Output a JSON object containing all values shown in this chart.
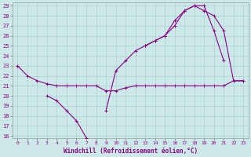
{
  "xlabel": "Windchill (Refroidissement éolien,°C)",
  "x_hours": [
    0,
    1,
    2,
    3,
    4,
    5,
    6,
    7,
    8,
    9,
    10,
    11,
    12,
    13,
    14,
    15,
    16,
    17,
    18,
    19,
    20,
    21,
    22,
    23
  ],
  "line_mid": [
    23,
    22,
    21.5,
    21.2,
    21.0,
    21.0,
    21.0,
    21.0,
    21.0,
    20.5,
    20.5,
    20.8,
    21.0,
    21.0,
    21.0,
    21.0,
    21.0,
    21.0,
    21.0,
    21.0,
    21.0,
    21.0,
    21.5,
    21.5
  ],
  "line_dip": [
    null,
    null,
    null,
    20.0,
    19.5,
    18.5,
    17.5,
    15.8,
    null,
    18.5,
    22.5,
    23.5,
    24.5,
    25.0,
    25.5,
    26.0,
    27.5,
    28.5,
    29.0,
    29.0,
    26.5,
    23.5,
    null,
    null
  ],
  "line_top": [
    null,
    null,
    null,
    null,
    null,
    null,
    null,
    null,
    null,
    null,
    null,
    null,
    null,
    null,
    null,
    null,
    null,
    null,
    null,
    null,
    null,
    null,
    null,
    null
  ],
  "line_upper": [
    23,
    null,
    null,
    null,
    null,
    null,
    null,
    null,
    null,
    null,
    null,
    null,
    null,
    25.0,
    25.5,
    26.0,
    27.0,
    28.5,
    29.0,
    28.5,
    28.0,
    26.5,
    21.5,
    21.5
  ],
  "ylim": [
    16,
    29
  ],
  "xlim": [
    0,
    23
  ],
  "yticks": [
    16,
    17,
    18,
    19,
    20,
    21,
    22,
    23,
    24,
    25,
    26,
    27,
    28,
    29
  ],
  "xticks": [
    0,
    1,
    2,
    3,
    4,
    5,
    6,
    7,
    8,
    9,
    10,
    11,
    12,
    13,
    14,
    15,
    16,
    17,
    18,
    19,
    20,
    21,
    22,
    23
  ],
  "line_color": "#880088",
  "bg_color": "#cce8e8",
  "grid_color": "#aad0d0"
}
